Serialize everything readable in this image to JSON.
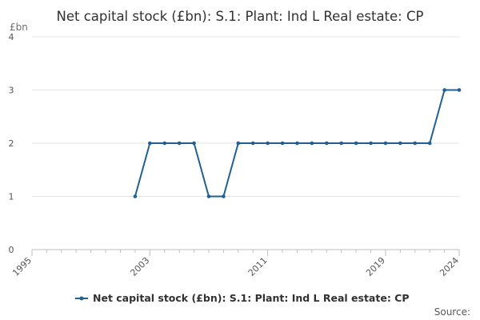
{
  "chart_data": {
    "type": "line",
    "title": "Net capital stock (£bn): S.1: Plant: Ind L Real estate: CP",
    "unit_label": "£bn",
    "source_label": "Source:",
    "xlabel": "",
    "ylabel": "",
    "xlim": [
      1995,
      2024
    ],
    "ylim": [
      0,
      4
    ],
    "yticks": [
      "0",
      "1",
      "2",
      "3",
      "4"
    ],
    "xticks": [
      "1995",
      "2003",
      "2011",
      "2019",
      "2024"
    ],
    "grid": true,
    "legend_position": "bottom",
    "series": [
      {
        "name": "Net capital stock (£bn): S.1: Plant: Ind L Real estate: CP",
        "color": "#206095",
        "x": [
          2002,
          2003,
          2004,
          2005,
          2006,
          2007,
          2008,
          2009,
          2010,
          2011,
          2012,
          2013,
          2014,
          2015,
          2016,
          2017,
          2018,
          2019,
          2020,
          2021,
          2022,
          2023,
          2024
        ],
        "values": [
          1,
          2,
          2,
          2,
          2,
          1,
          1,
          2,
          2,
          2,
          2,
          2,
          2,
          2,
          2,
          2,
          2,
          2,
          2,
          2,
          2,
          3,
          3
        ]
      }
    ]
  }
}
